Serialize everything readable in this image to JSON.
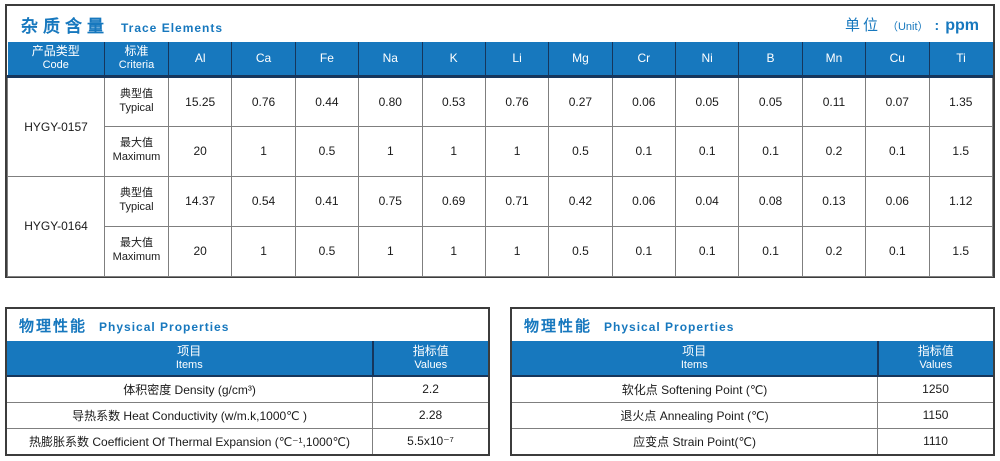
{
  "accent_color": "#1778be",
  "trace_section": {
    "title_zh": "杂质含量",
    "title_en": "Trace Elements",
    "unit_zh": "单位",
    "unit_paren": "（Unit）",
    "unit_colon": ":",
    "unit_value": "ppm",
    "col_code_zh": "产品类型",
    "col_code_en": "Code",
    "col_criteria_zh": "标准",
    "col_criteria_en": "Criteria",
    "elements": [
      "Al",
      "Ca",
      "Fe",
      "Na",
      "K",
      "Li",
      "Mg",
      "Cr",
      "Ni",
      "B",
      "Mn",
      "Cu",
      "Ti"
    ],
    "products": [
      {
        "code": "HYGY-0157",
        "rows": [
          {
            "criteria_zh": "典型值",
            "criteria_en": "Typical",
            "values": [
              "15.25",
              "0.76",
              "0.44",
              "0.80",
              "0.53",
              "0.76",
              "0.27",
              "0.06",
              "0.05",
              "0.05",
              "0.11",
              "0.07",
              "1.35"
            ]
          },
          {
            "criteria_zh": "最大值",
            "criteria_en": "Maximum",
            "values": [
              "20",
              "1",
              "0.5",
              "1",
              "1",
              "1",
              "0.5",
              "0.1",
              "0.1",
              "0.1",
              "0.2",
              "0.1",
              "1.5"
            ]
          }
        ]
      },
      {
        "code": "HYGY-0164",
        "rows": [
          {
            "criteria_zh": "典型值",
            "criteria_en": "Typical",
            "values": [
              "14.37",
              "0.54",
              "0.41",
              "0.75",
              "0.69",
              "0.71",
              "0.42",
              "0.06",
              "0.04",
              "0.08",
              "0.13",
              "0.06",
              "1.12"
            ]
          },
          {
            "criteria_zh": "最大值",
            "criteria_en": "Maximum",
            "values": [
              "20",
              "1",
              "0.5",
              "1",
              "1",
              "1",
              "0.5",
              "0.1",
              "0.1",
              "0.1",
              "0.2",
              "0.1",
              "1.5"
            ]
          }
        ]
      }
    ]
  },
  "physical_left": {
    "title_zh": "物理性能",
    "title_en": "Physical Properties",
    "col_items_zh": "项目",
    "col_items_en": "Items",
    "col_values_zh": "指标值",
    "col_values_en": "Values",
    "rows": [
      {
        "item": "体积密度 Density (g/cm³)",
        "value": "2.2"
      },
      {
        "item": "导热系数 Heat Conductivity (w/m.k,1000℃ )",
        "value": "2.28"
      },
      {
        "item": "热膨胀系数 Coefficient Of Thermal Expansion (℃⁻¹,1000℃)",
        "value": "5.5x10⁻⁷"
      }
    ]
  },
  "physical_right": {
    "title_zh": "物理性能",
    "title_en": "Physical Properties",
    "col_items_zh": "项目",
    "col_items_en": "Items",
    "col_values_zh": "指标值",
    "col_values_en": "Values",
    "rows": [
      {
        "item": "软化点 Softening Point (℃)",
        "value": "1250"
      },
      {
        "item": "退火点 Annealing Point (℃)",
        "value": "1150"
      },
      {
        "item": "应变点 Strain Point(℃)",
        "value": "1110"
      }
    ]
  }
}
